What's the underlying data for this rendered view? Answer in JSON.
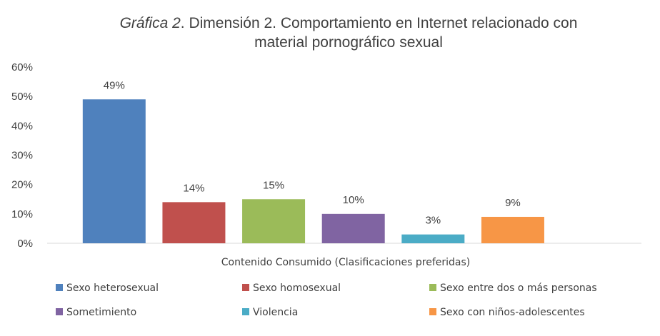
{
  "chart_data": {
    "type": "bar",
    "title_italic": "Gráfica 2",
    "title_rest_line1": ". Dimensión 2. Comportamiento en Internet relacionado con",
    "title_line2": "material pornográfico sexual",
    "xlabel": "Contenido Consumido (Clasificaciones preferidas)",
    "ylabel": "",
    "ylim": [
      0,
      60
    ],
    "y_ticks": [
      0,
      10,
      20,
      30,
      40,
      50,
      60
    ],
    "y_tick_labels": [
      "0%",
      "10%",
      "20%",
      "30%",
      "40%",
      "50%",
      "60%"
    ],
    "legend_position": "bottom",
    "gridlines": false,
    "series": [
      {
        "name": "Sexo heterosexual",
        "value": 49,
        "label": "49%",
        "color": "#4F81BD"
      },
      {
        "name": "Sexo homosexual",
        "value": 14,
        "label": "14%",
        "color": "#C0504D"
      },
      {
        "name": "Sexo entre dos o más personas",
        "value": 15,
        "label": "15%",
        "color": "#9BBB59"
      },
      {
        "name": "Sometimiento",
        "value": 10,
        "label": "10%",
        "color": "#8064A2"
      },
      {
        "name": "Violencia",
        "value": 3,
        "label": "3%",
        "color": "#4BACC6"
      },
      {
        "name": "Sexo con niños-adolescentes",
        "value": 9,
        "label": "9%",
        "color": "#F79646"
      }
    ]
  }
}
